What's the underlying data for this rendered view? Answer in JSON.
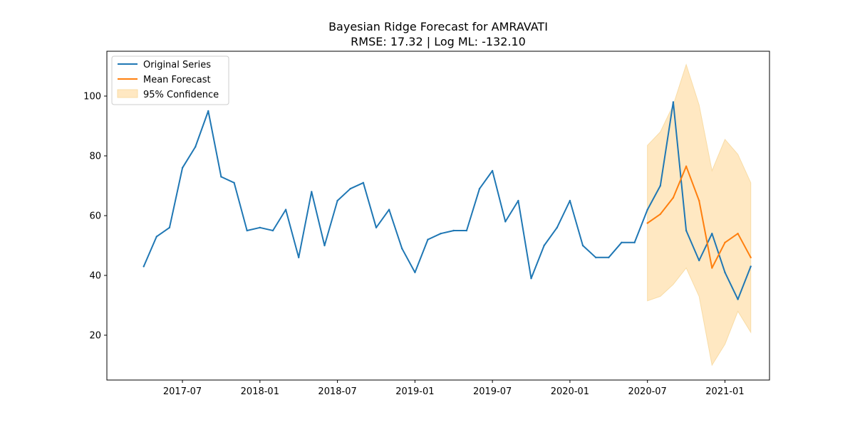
{
  "chart_data": {
    "type": "line",
    "title": "Bayesian Ridge Forecast for AMRAVATI",
    "subtitle": "RMSE: 17.32 | Log ML: -132.10",
    "xlabel": "",
    "ylabel": "",
    "x_tick_labels": [
      "2017-07",
      "2018-01",
      "2018-07",
      "2019-01",
      "2019-07",
      "2020-01",
      "2020-07",
      "2021-01"
    ],
    "y_tick_labels": [
      "20",
      "40",
      "60",
      "80",
      "100"
    ],
    "ylim": [
      5,
      115
    ],
    "xlim": [
      "2017-02",
      "2021-05"
    ],
    "grid": false,
    "legend_position": "upper left",
    "series": [
      {
        "name": "Original Series",
        "color": "#1f77b4",
        "x": [
          "2017-04",
          "2017-05",
          "2017-06",
          "2017-07",
          "2017-08",
          "2017-09",
          "2017-10",
          "2017-11",
          "2017-12",
          "2018-01",
          "2018-02",
          "2018-03",
          "2018-04",
          "2018-05",
          "2018-06",
          "2018-07",
          "2018-08",
          "2018-09",
          "2018-10",
          "2018-11",
          "2018-12",
          "2019-01",
          "2019-02",
          "2019-03",
          "2019-04",
          "2019-05",
          "2019-06",
          "2019-07",
          "2019-08",
          "2019-09",
          "2019-10",
          "2019-11",
          "2019-12",
          "2020-01",
          "2020-02",
          "2020-03",
          "2020-04",
          "2020-05",
          "2020-06",
          "2020-07",
          "2020-08",
          "2020-09",
          "2020-10",
          "2020-11",
          "2020-12",
          "2021-01",
          "2021-02",
          "2021-03"
        ],
        "y": [
          43,
          53,
          56,
          76,
          83,
          95,
          73,
          71,
          55,
          56,
          55,
          62,
          46,
          68,
          50,
          65,
          69,
          71,
          56,
          62,
          49,
          41,
          52,
          54,
          55,
          55,
          69,
          75,
          58,
          65,
          39,
          50,
          56,
          65,
          50,
          46,
          46,
          51,
          51,
          62,
          70,
          98,
          55,
          45,
          54,
          41,
          32,
          43
        ]
      },
      {
        "name": "Mean Forecast",
        "color": "#ff7f0e",
        "x": [
          "2020-07",
          "2020-08",
          "2020-09",
          "2020-10",
          "2020-11",
          "2020-12",
          "2021-01",
          "2021-02",
          "2021-03"
        ],
        "y": [
          57.5,
          60.5,
          66,
          76.5,
          65,
          42.5,
          51,
          54,
          46
        ]
      }
    ],
    "confidence_band": {
      "name": "95% Confidence",
      "color": "#ffe8c2",
      "edge_color": "#f8dca6",
      "x": [
        "2020-07",
        "2020-08",
        "2020-09",
        "2020-10",
        "2020-11",
        "2020-12",
        "2021-01",
        "2021-02",
        "2021-03"
      ],
      "upper": [
        83.5,
        88,
        97,
        110.5,
        97,
        75,
        85.5,
        80.5,
        71
      ],
      "lower": [
        31.5,
        33,
        37,
        42.5,
        33,
        10,
        17,
        28,
        21
      ]
    }
  }
}
